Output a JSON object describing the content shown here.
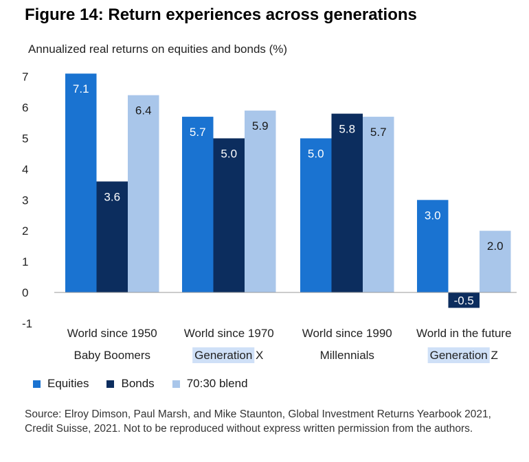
{
  "header": {
    "title": "Figure 14: Return experiences across generations",
    "subtitle": "Annualized real returns on equities and bonds (%)"
  },
  "colors": {
    "equities": "#1a73d1",
    "bonds": "#0c2d5e",
    "blend": "#a9c6ea",
    "highlight": "#cfe0f7"
  },
  "legend": [
    {
      "label": "Equities",
      "color": "#1a73d1"
    },
    {
      "label": "Bonds",
      "color": "#0c2d5e"
    },
    {
      "label": "70:30 blend",
      "color": "#a9c6ea"
    }
  ],
  "source": "Source: Elroy Dimson, Paul Marsh, and Mike Staunton, Global Investment Returns Yearbook 2021, Credit Suisse, 2021. Not to be reproduced without express written permission from the authors.",
  "chart_data": {
    "type": "bar",
    "title": "Figure 14: Return experiences across generations",
    "ylabel": "Annualized real returns on equities and bonds (%)",
    "xlabel": "",
    "ylim": [
      -1,
      7
    ],
    "yticks": [
      -1,
      0,
      1,
      2,
      3,
      4,
      5,
      6,
      7
    ],
    "grid": false,
    "legend_position": "bottom-left",
    "categories": [
      {
        "line1": "World since 1950",
        "line2": "Baby Boomers",
        "highlight_line2": false
      },
      {
        "line1": "World since 1970",
        "line2": "Generation X",
        "highlight_line2": true
      },
      {
        "line1": "World since 1990",
        "line2": "Millennials",
        "highlight_line2": false
      },
      {
        "line1": "World in the future",
        "line2": "Generation Z",
        "highlight_line2": true
      }
    ],
    "series": [
      {
        "name": "Equities",
        "color": "#1a73d1",
        "label_color": "#ffffff",
        "values": [
          7.1,
          5.7,
          5.0,
          3.0
        ]
      },
      {
        "name": "Bonds",
        "color": "#0c2d5e",
        "label_color": "#ffffff",
        "values": [
          3.6,
          5.0,
          5.8,
          -0.5
        ]
      },
      {
        "name": "70:30 blend",
        "color": "#a9c6ea",
        "label_color": "#1a1a1a",
        "values": [
          6.4,
          5.9,
          5.7,
          2.0
        ]
      }
    ]
  }
}
